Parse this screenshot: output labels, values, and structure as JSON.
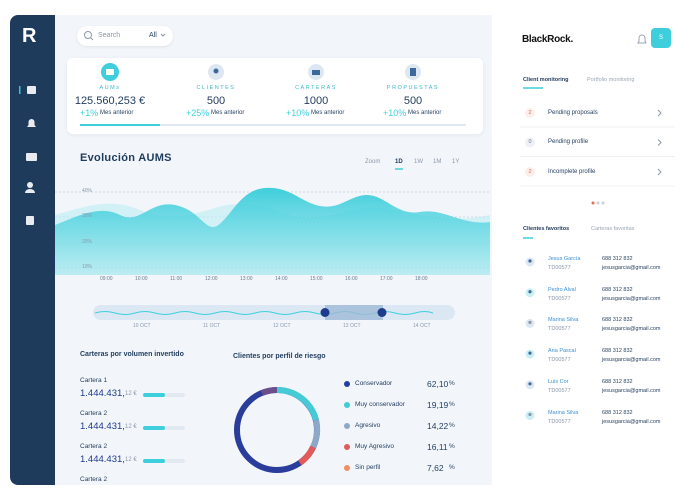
{
  "sidebar": {
    "logo": "R"
  },
  "search": {
    "placeholder": "Search",
    "filter": "All"
  },
  "kpis": [
    {
      "label": "AUMs",
      "value": "125.560,253 €",
      "change": "+1%",
      "note": "Mes anterior"
    },
    {
      "label": "CLIENTES",
      "value": "500",
      "change": "+25%",
      "note": "Mes anterior"
    },
    {
      "label": "CARTERAS",
      "value": "1000",
      "change": "+10%",
      "note": "Mes anterior"
    },
    {
      "label": "PROPUESTAS",
      "value": "500",
      "change": "+10%",
      "note": "Mes anterior"
    }
  ],
  "evolution": {
    "title": "Evolución AUMS",
    "zoom": "Zoom",
    "ranges": [
      "1D",
      "1W",
      "1M",
      "1Y"
    ],
    "y_labels": [
      "40%",
      "30%",
      "20%",
      "10%"
    ],
    "x_labels": [
      "09:00",
      "10:00",
      "11:00",
      "12:00",
      "13:00",
      "14:00",
      "15:00",
      "16:00",
      "17:00",
      "18:00"
    ],
    "nav_labels": [
      "10 OCT",
      "11 OCT",
      "12 OCT",
      "13 OCT",
      "14 OCT"
    ]
  },
  "carteras": {
    "title": "Carteras por volumen invertido",
    "items": [
      {
        "name": "Cartera 1",
        "amount": "1.444.431,",
        "cents": "12 €"
      },
      {
        "name": "Cartera 2",
        "amount": "1.444.431,",
        "cents": "12 €"
      },
      {
        "name": "Cartera 2",
        "amount": "1.444.431,",
        "cents": "12 €"
      },
      {
        "name": "Cartera 2"
      }
    ]
  },
  "riesgo": {
    "title": "Clientes por perfil de riesgo",
    "items": [
      {
        "label": "Conservador",
        "value": "62,10",
        "unit": "%"
      },
      {
        "label": "Muy conservador",
        "value": "19,19",
        "unit": "%"
      },
      {
        "label": "Agresivo",
        "value": "14,22",
        "unit": "%"
      },
      {
        "label": "Muy Agresivo",
        "value": "16,11",
        "unit": "%"
      },
      {
        "label": "Sin perfil",
        "value": "7,62",
        "unit": "%"
      }
    ]
  },
  "brand": "BlackRock.",
  "avatar": "S",
  "monitor_tabs": [
    "Client monitoring",
    "Portfolio monitoring"
  ],
  "alerts": [
    {
      "count": "2",
      "label": "Pending proposals"
    },
    {
      "count": "0",
      "label": "Pending profile"
    },
    {
      "count": "2",
      "label": "Incomplete profile"
    }
  ],
  "fav_tabs": [
    "Clientes favoritos",
    "Carteras favoritas"
  ],
  "clients": [
    {
      "name": "Jesus García",
      "id": "TD00577",
      "phone": "688 312 832",
      "email": "jesusgarcia@gmail.com"
    },
    {
      "name": "Pedro Alval",
      "id": "TD00577",
      "phone": "688 312 832",
      "email": "jesusgarcia@gmail.com"
    },
    {
      "name": "Marina Silva",
      "id": "TD00577",
      "phone": "688 312 832",
      "email": "jesusgarcia@gmail.com"
    },
    {
      "name": "Ana Pascal",
      "id": "TD00577",
      "phone": "688 312 832",
      "email": "jesusgarcia@gmail.com"
    },
    {
      "name": "Luis Cor",
      "id": "TD00577",
      "phone": "688 312 832",
      "email": "jesusgarcia@gmail.com"
    },
    {
      "name": "Marina Silva",
      "id": "TD00577",
      "phone": "688 312 832",
      "email": "jesusgarcia@gmail.com"
    }
  ]
}
